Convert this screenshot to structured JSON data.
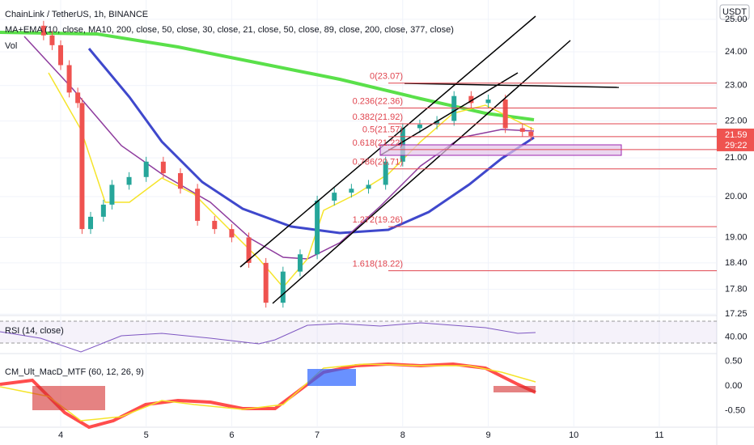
{
  "header": {
    "symbol": "ChainLink / TetherUS, 1h, BINANCE",
    "ma_study": "MA+EMA (10, close, MA10, 200, close, 50, close, 30, close, 21, close, 50, close, 89, close, 200, close, 377, close)",
    "vol": "Vol",
    "currency": "USDT"
  },
  "price_axis": {
    "ticks": [
      {
        "value": 25,
        "label": "25.00"
      },
      {
        "value": 24,
        "label": "24.00"
      },
      {
        "value": 23,
        "label": "23.00"
      },
      {
        "value": 22,
        "label": "22.00"
      },
      {
        "value": 21,
        "label": "21.00"
      },
      {
        "value": 20,
        "label": "20.00"
      },
      {
        "value": 19,
        "label": "19.00"
      },
      {
        "value": 18.4,
        "label": "18.40"
      },
      {
        "value": 17.8,
        "label": "17.80"
      },
      {
        "value": 17.25,
        "label": "17.25"
      }
    ],
    "last_price": {
      "value": 21.59,
      "label": "21.59"
    },
    "countdown": "29:22"
  },
  "fib_levels": [
    {
      "value": 23.07,
      "label": "0(23.07)"
    },
    {
      "value": 22.36,
      "label": "0.236(22.36)"
    },
    {
      "value": 21.92,
      "label": "0.382(21.92)"
    },
    {
      "value": 21.57,
      "label": "0.5(21.57)"
    },
    {
      "value": 21.22,
      "label": "0.618(21.22)"
    },
    {
      "value": 20.71,
      "label": "0.786(20.71)"
    },
    {
      "value": 19.26,
      "label": "1.272(19.26)"
    },
    {
      "value": 18.22,
      "label": "1.618(18.22)"
    }
  ],
  "time_axis": {
    "days": [
      4,
      5,
      6,
      7,
      8,
      9,
      10,
      11
    ]
  },
  "price_series": {
    "x": [
      3.7,
      3.8,
      3.9,
      4.0,
      4.1,
      4.2,
      4.25,
      4.35,
      4.5,
      4.6,
      4.8,
      5.0,
      5.2,
      5.4,
      5.6,
      5.8,
      6.0,
      6.2,
      6.4,
      6.6,
      6.8,
      7.0,
      7.2,
      7.4,
      7.6,
      7.8,
      8.0,
      8.2,
      8.4,
      8.6,
      8.8,
      9.0,
      9.2,
      9.4,
      9.5
    ],
    "close": [
      24.8,
      24.5,
      24.2,
      23.6,
      22.8,
      22.5,
      19.2,
      19.5,
      19.8,
      20.3,
      20.5,
      20.9,
      20.6,
      20.2,
      19.4,
      19.2,
      19.0,
      18.4,
      17.5,
      18.2,
      18.6,
      19.9,
      20.1,
      20.2,
      20.3,
      20.9,
      21.8,
      21.9,
      22.0,
      22.7,
      22.5,
      22.6,
      21.8,
      21.7,
      21.59
    ]
  },
  "rsi": {
    "title": "RSI (14, close)",
    "ticks": [
      {
        "value": 40,
        "label": "40.00"
      }
    ]
  },
  "macd": {
    "title": "CM_Ult_MacD_MTF (60, 12, 26, 9)",
    "ticks": [
      {
        "value": 0.5,
        "label": "0.50"
      },
      {
        "value": 0,
        "label": "0.00"
      },
      {
        "value": -0.5,
        "label": "-0.50"
      }
    ]
  }
}
